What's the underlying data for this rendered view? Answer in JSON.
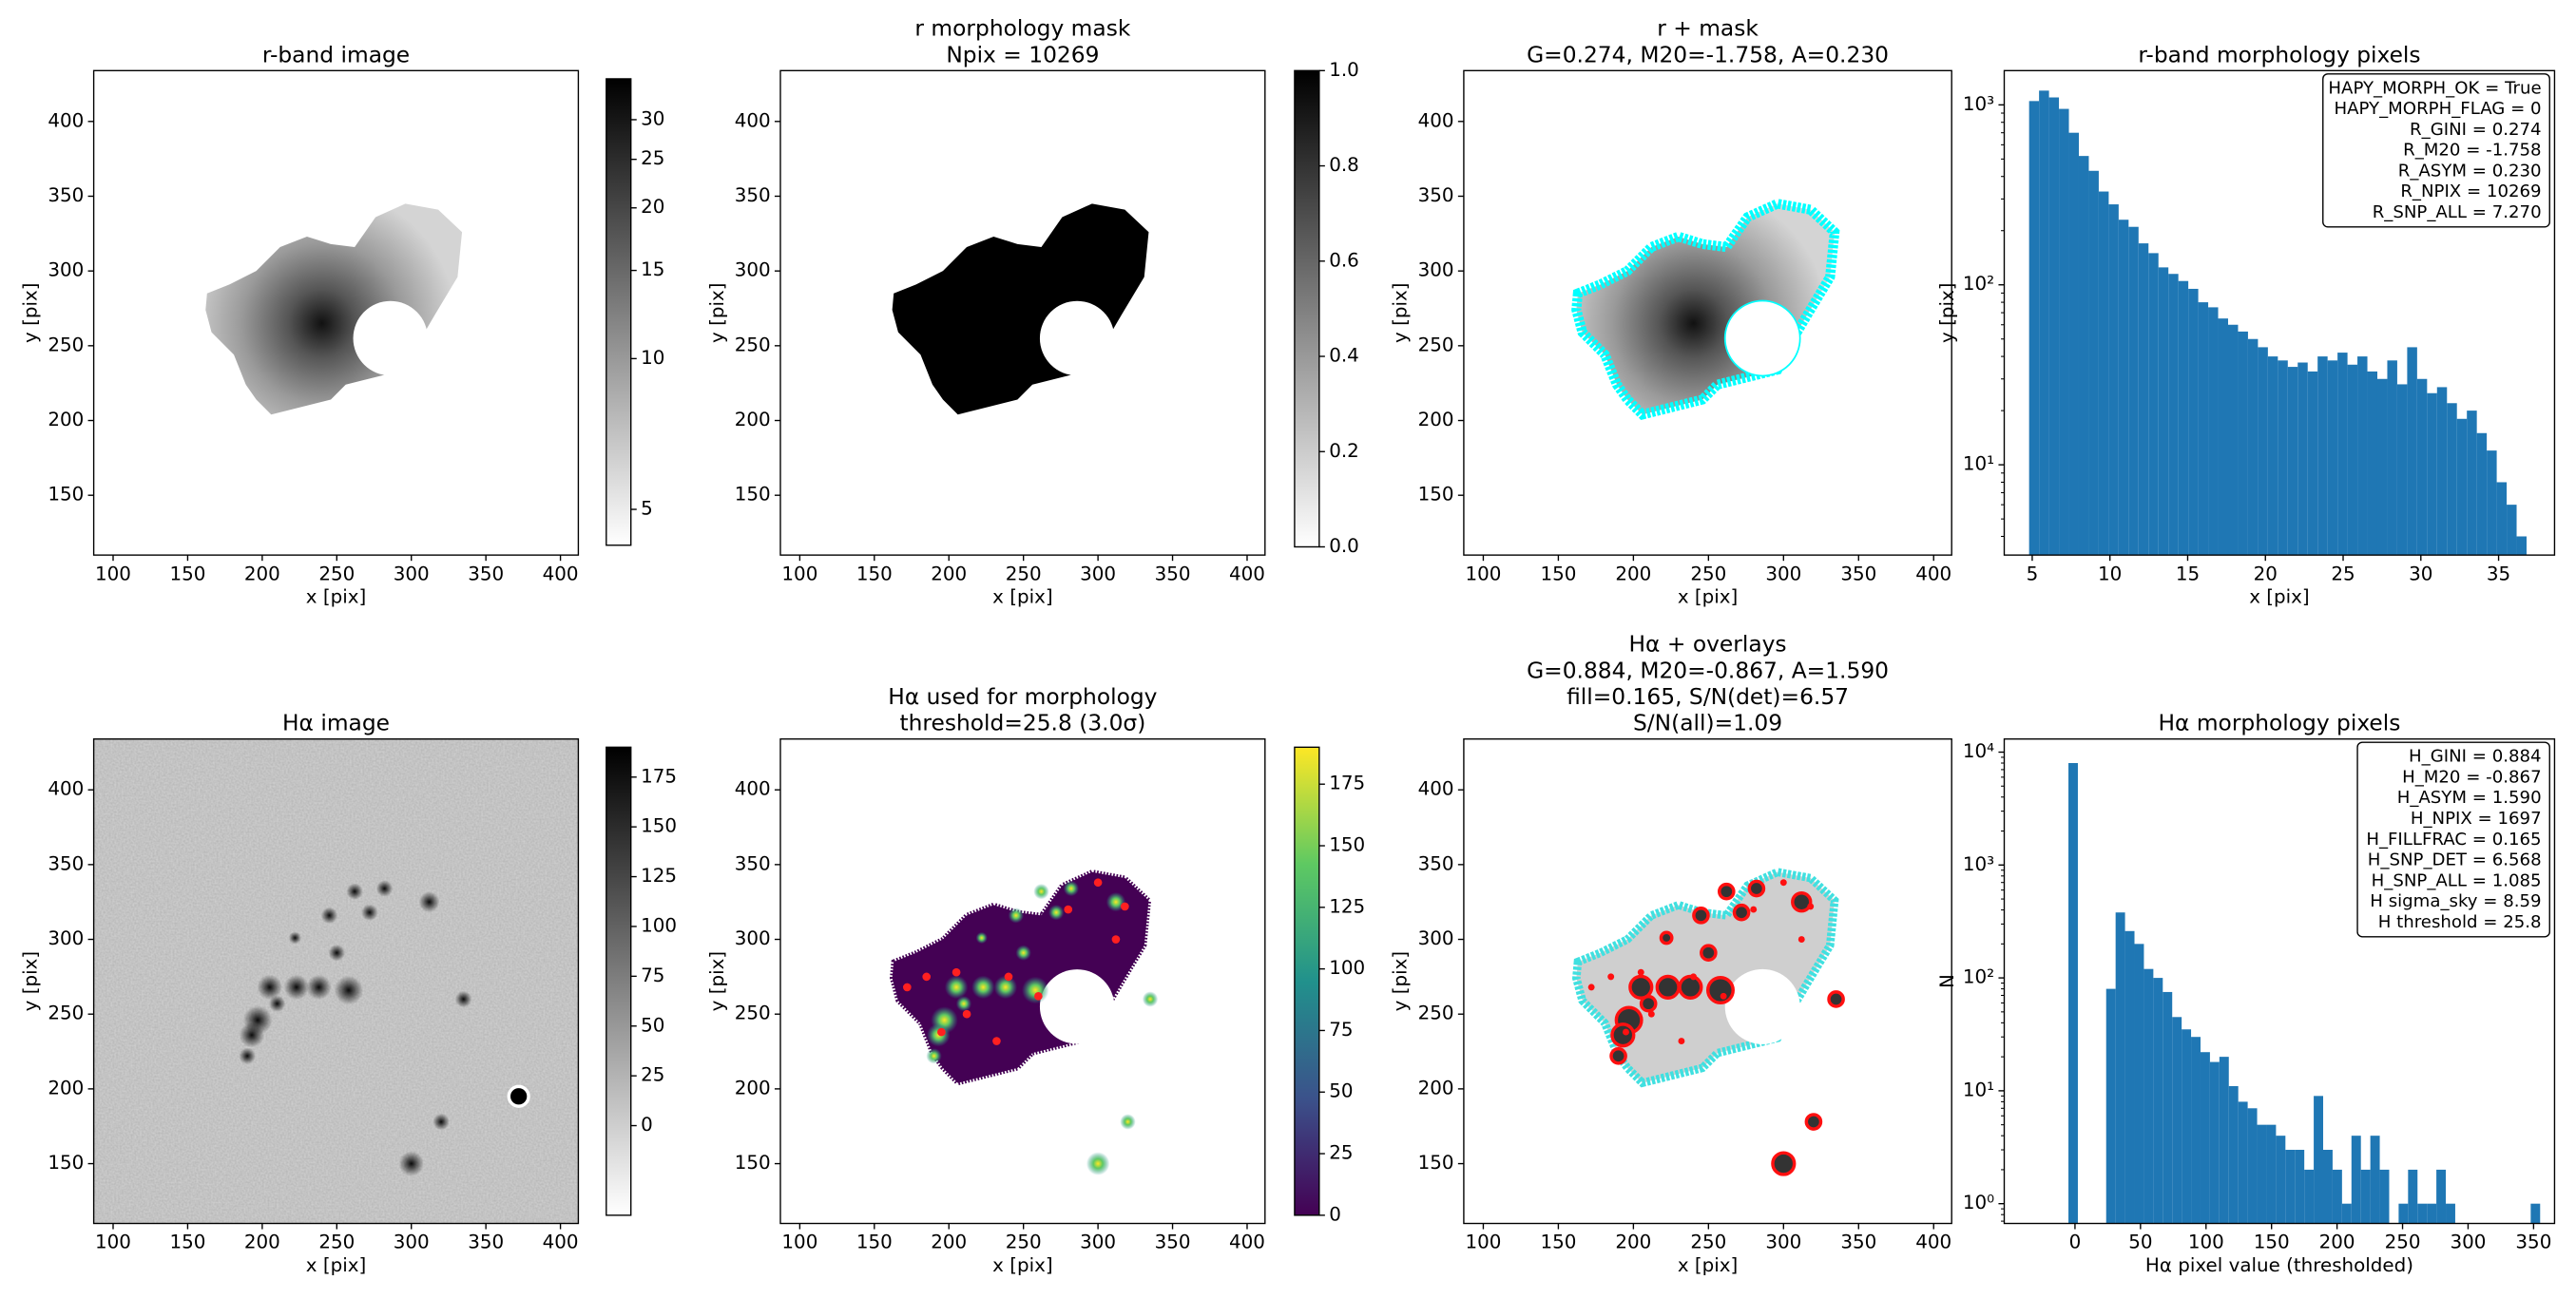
{
  "chart_data": [
    {
      "type": "image",
      "title": [
        "r-band image"
      ],
      "xlabel": "x [pix]",
      "ylabel": "y [pix]",
      "xlim": [
        87,
        412
      ],
      "ylim": [
        110,
        434
      ],
      "xticks": [
        100,
        150,
        200,
        250,
        300,
        350,
        400
      ],
      "yticks": [
        150,
        200,
        250,
        300,
        350,
        400
      ],
      "colorbar": {
        "lim": [
          4.24,
          36.2
        ],
        "log": true,
        "ticks": [
          5,
          10,
          15,
          20,
          25,
          30
        ],
        "colors": [
          "#ffffff",
          "#000000"
        ]
      }
    },
    {
      "type": "image",
      "title": [
        "r morphology mask",
        "Npix = 10269"
      ],
      "xlabel": "x [pix]",
      "ylabel": "y [pix]",
      "xlim": [
        87,
        412
      ],
      "ylim": [
        110,
        434
      ],
      "xticks": [
        100,
        150,
        200,
        250,
        300,
        350,
        400
      ],
      "yticks": [
        150,
        200,
        250,
        300,
        350,
        400
      ],
      "colorbar": {
        "lim": [
          0,
          1
        ],
        "log": false,
        "ticks": [
          {
            "value": 0,
            "label": "0.0"
          },
          0.2,
          0.4,
          0.6,
          0.8,
          {
            "value": 1,
            "label": "1.0"
          }
        ],
        "colors": [
          "#ffffff",
          "#000000"
        ]
      }
    },
    {
      "type": "image",
      "title": [
        "r + mask",
        "G=0.274, M20=-1.758, A=0.230"
      ],
      "xlabel": "x [pix]",
      "ylabel": "y [pix]",
      "xlim": [
        87,
        412
      ],
      "ylim": [
        110,
        434
      ],
      "xticks": [
        100,
        150,
        200,
        250,
        300,
        350,
        400
      ],
      "yticks": [
        150,
        200,
        250,
        300,
        350,
        400
      ]
    },
    {
      "type": "histogram",
      "title": [
        "r-band morphology pixels"
      ],
      "xlabel": "x [pix]",
      "ylabel": "y [pix]",
      "color": "#1f77b4",
      "log_y": true,
      "bins": [
        4.8,
        5.44,
        6.08,
        6.72,
        7.36,
        8.0,
        8.64,
        9.28,
        9.92,
        10.56,
        11.2,
        11.84,
        12.48,
        13.12,
        13.76,
        14.4,
        15.04,
        15.68,
        16.32,
        16.96,
        17.6,
        18.24,
        18.88,
        19.52,
        20.16,
        20.8,
        21.44,
        22.08,
        22.72,
        23.36,
        24.0,
        24.64,
        25.28,
        25.92,
        26.56,
        27.2,
        27.84,
        28.48,
        29.12,
        29.76,
        30.4,
        31.04,
        31.68,
        32.32,
        32.96,
        33.6,
        34.24,
        34.88,
        35.52,
        36.16,
        36.8
      ],
      "values": [
        1050,
        1200,
        1100,
        950,
        700,
        520,
        430,
        330,
        280,
        230,
        210,
        170,
        150,
        125,
        115,
        105,
        95,
        80,
        75,
        65,
        60,
        55,
        50,
        45,
        40,
        38,
        35,
        37,
        33,
        40,
        38,
        42,
        36,
        40,
        33,
        30,
        38,
        28,
        45,
        30,
        25,
        27,
        22,
        18,
        20,
        15,
        12,
        8,
        6,
        4
      ],
      "xlim": [
        3.2,
        38.6
      ],
      "ylim": [
        3.15,
        1550
      ],
      "xticks": [
        5,
        10,
        15,
        20,
        25,
        30,
        35
      ],
      "yticks": [
        {
          "value": 10,
          "label": "10¹"
        },
        {
          "value": 100,
          "label": "10²"
        },
        {
          "value": 1000,
          "label": "10³"
        }
      ],
      "textbox": [
        "HAPY_MORPH_OK = True",
        "HAPY_MORPH_FLAG = 0",
        "R_GINI = 0.274",
        "R_M20 = -1.758",
        "R_ASYM = 0.230",
        "R_NPIX = 10269",
        "R_SNP_ALL = 7.270"
      ]
    },
    {
      "type": "image",
      "title": [
        "Hα image"
      ],
      "xlabel": "x [pix]",
      "ylabel": "y [pix]",
      "xlim": [
        87,
        412
      ],
      "ylim": [
        110,
        434
      ],
      "xticks": [
        100,
        150,
        200,
        250,
        300,
        350,
        400
      ],
      "yticks": [
        150,
        200,
        250,
        300,
        350,
        400
      ],
      "colorbar": {
        "lim": [
          -45,
          190
        ],
        "log": false,
        "ticks": [
          0,
          25,
          50,
          75,
          100,
          125,
          150,
          175
        ],
        "colors": [
          "#ffffff",
          "#000000"
        ]
      }
    },
    {
      "type": "image",
      "title": [
        "Hα used for morphology",
        "threshold=25.8 (3.0σ)"
      ],
      "xlabel": "x [pix]",
      "ylabel": "y [pix]",
      "xlim": [
        87,
        412
      ],
      "ylim": [
        110,
        434
      ],
      "xticks": [
        100,
        150,
        200,
        250,
        300,
        350,
        400
      ],
      "yticks": [
        150,
        200,
        250,
        300,
        350,
        400
      ],
      "colorbar": {
        "lim": [
          0,
          190
        ],
        "log": false,
        "ticks": [
          0,
          25,
          50,
          75,
          100,
          125,
          150,
          175
        ],
        "colors": [
          "#440154",
          "#3b528b",
          "#21918c",
          "#5ec962",
          "#fde725"
        ]
      }
    },
    {
      "type": "image",
      "title": [
        "Hα + overlays",
        "G=0.884, M20=-0.867, A=1.590",
        "fill=0.165, S/N(det)=6.57",
        "S/N(all)=1.09"
      ],
      "xlabel": "x [pix]",
      "ylabel": "y [pix]",
      "xlim": [
        87,
        412
      ],
      "ylim": [
        110,
        434
      ],
      "xticks": [
        100,
        150,
        200,
        250,
        300,
        350,
        400
      ],
      "yticks": [
        150,
        200,
        250,
        300,
        350,
        400
      ]
    },
    {
      "type": "histogram",
      "title": [
        "Hα morphology pixels"
      ],
      "xlabel": "Hα pixel value (thresholded)",
      "ylabel": "N",
      "color": "#1f77b4",
      "log_y": true,
      "bins": [
        -5,
        2.2,
        9.4,
        16.6,
        23.8,
        31,
        38.2,
        45.4,
        52.6,
        59.8,
        67,
        74.2,
        81.4,
        88.6,
        95.8,
        103,
        110.2,
        117.4,
        124.6,
        131.8,
        139,
        146.2,
        153.4,
        160.6,
        167.8,
        175,
        182.2,
        189.4,
        196.6,
        203.8,
        211,
        218.2,
        225.4,
        232.6,
        239.8,
        247,
        254.2,
        261.4,
        268.6,
        275.8,
        283,
        290.2,
        297.4,
        304.6,
        311.8,
        319,
        326.2,
        333.4,
        340.6,
        347.8,
        355
      ],
      "values": [
        8000,
        0,
        0,
        0,
        80,
        380,
        260,
        200,
        120,
        100,
        75,
        45,
        35,
        30,
        22,
        18,
        20,
        11,
        8,
        7,
        5,
        5,
        4,
        3,
        3,
        2,
        9,
        3,
        2,
        1,
        4,
        2,
        4,
        2,
        0,
        1,
        2,
        1,
        1,
        2,
        1,
        0,
        0,
        0,
        0,
        0,
        0,
        0,
        0,
        1
      ],
      "xlim": [
        -54,
        366
      ],
      "ylim": [
        0.668,
        13070
      ],
      "xticks": [
        0,
        50,
        100,
        150,
        200,
        250,
        300,
        350
      ],
      "yticks": [
        {
          "value": 1,
          "label": "10⁰"
        },
        {
          "value": 10,
          "label": "10¹"
        },
        {
          "value": 100,
          "label": "10²"
        },
        {
          "value": 1000,
          "label": "10³"
        },
        {
          "value": 10000,
          "label": "10⁴"
        }
      ],
      "textbox": [
        "H_GINI = 0.884",
        "H_M20 = -0.867",
        "H_ASYM = 1.590",
        "H_NPIX = 1697",
        "H_FILLFRAC = 0.165",
        "H_SNP_DET = 6.568",
        "H_SNP_ALL = 1.085",
        "H sigma_sky = 8.59",
        "H threshold = 25.8"
      ]
    }
  ]
}
